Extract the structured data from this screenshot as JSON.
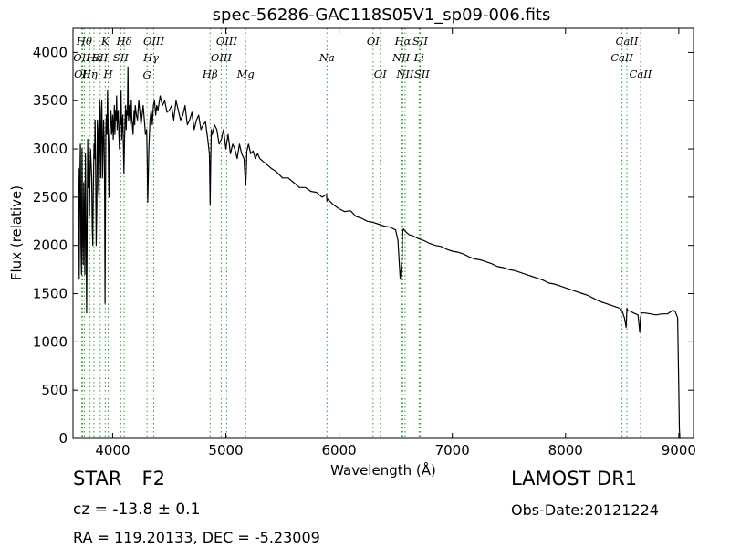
{
  "chart_data": {
    "type": "line",
    "title": "spec-56286-GAC118S05V1_sp09-006.fits",
    "xlabel": "Wavelength (Å)",
    "ylabel": "Flux (relative)",
    "xlim": [
      3650,
      9130
    ],
    "ylim": [
      0,
      4250
    ],
    "xticks": [
      4000,
      5000,
      6000,
      7000,
      8000,
      9000
    ],
    "yticks": [
      0,
      500,
      1000,
      1500,
      2000,
      2500,
      3000,
      3500,
      4000
    ],
    "grid": false,
    "line_color": "#000000",
    "marker_color": "#2ca02c",
    "series": [
      {
        "x": [
          3700,
          3705,
          3710,
          3715,
          3720,
          3725,
          3730,
          3735,
          3740,
          3745,
          3750,
          3755,
          3760,
          3765,
          3770,
          3775,
          3780,
          3785,
          3790,
          3795,
          3800,
          3805,
          3810,
          3815,
          3820,
          3825,
          3830,
          3835,
          3840,
          3845,
          3850,
          3855,
          3860,
          3865,
          3870,
          3875,
          3880,
          3885,
          3890,
          3895,
          3900,
          3905,
          3910,
          3915,
          3920,
          3925,
          3930,
          3933,
          3936,
          3940,
          3945,
          3950,
          3955,
          3960,
          3965,
          3968,
          3972,
          3978,
          3985,
          3990,
          3995,
          4000,
          4005,
          4010,
          4015,
          4020,
          4025,
          4030,
          4035,
          4040,
          4045,
          4050,
          4055,
          4060,
          4065,
          4070,
          4075,
          4080,
          4085,
          4090,
          4095,
          4100,
          4105,
          4110,
          4115,
          4120,
          4125,
          4130,
          4135,
          4140,
          4145,
          4150,
          4155,
          4160,
          4165,
          4170,
          4175,
          4180,
          4185,
          4190,
          4195,
          4200,
          4210,
          4220,
          4230,
          4240,
          4250,
          4260,
          4270,
          4280,
          4290,
          4300,
          4305,
          4310,
          4315,
          4320,
          4330,
          4340,
          4345,
          4350,
          4360,
          4370,
          4380,
          4390,
          4400,
          4420,
          4440,
          4460,
          4480,
          4500,
          4520,
          4540,
          4560,
          4580,
          4600,
          4620,
          4640,
          4660,
          4680,
          4700,
          4720,
          4740,
          4760,
          4780,
          4800,
          4820,
          4840,
          4850,
          4855,
          4861,
          4866,
          4872,
          4880,
          4900,
          4920,
          4940,
          4960,
          4980,
          5000,
          5020,
          5040,
          5060,
          5080,
          5100,
          5120,
          5140,
          5160,
          5170,
          5175,
          5180,
          5185,
          5190,
          5200,
          5220,
          5240,
          5260,
          5280,
          5300,
          5350,
          5400,
          5450,
          5500,
          5550,
          5600,
          5650,
          5700,
          5750,
          5800,
          5850,
          5889,
          5893,
          5900,
          5950,
          6000,
          6050,
          6100,
          6150,
          6200,
          6250,
          6300,
          6350,
          6400,
          6450,
          6500,
          6520,
          6540,
          6555,
          6560,
          6563,
          6567,
          6575,
          6590,
          6620,
          6650,
          6700,
          6750,
          6800,
          6850,
          6900,
          6950,
          7000,
          7050,
          7100,
          7150,
          7200,
          7250,
          7300,
          7350,
          7400,
          7450,
          7500,
          7550,
          7600,
          7650,
          7700,
          7750,
          7800,
          7850,
          7900,
          7950,
          8000,
          8050,
          8100,
          8150,
          8200,
          8250,
          8300,
          8350,
          8400,
          8450,
          8480,
          8500,
          8520,
          8535,
          8542,
          8550,
          8570,
          8600,
          8640,
          8655,
          8662,
          8670,
          8700,
          8750,
          8800,
          8850,
          8900,
          8950,
          8970,
          8980,
          8990,
          9000,
          9005,
          9010
        ],
        "y": [
          2800,
          1650,
          2600,
          3050,
          2000,
          1700,
          3000,
          2100,
          1800,
          2650,
          2300,
          1700,
          2950,
          2200,
          1300,
          2200,
          3100,
          2600,
          2900,
          2300,
          2700,
          3000,
          2850,
          2700,
          2200,
          2000,
          2600,
          3050,
          2900,
          3300,
          2800,
          2000,
          2400,
          3300,
          3200,
          2600,
          2500,
          3500,
          3200,
          2700,
          3400,
          3500,
          2700,
          3000,
          3300,
          3100,
          2500,
          1400,
          2300,
          3200,
          3350,
          3150,
          3600,
          3200,
          2700,
          2500,
          3100,
          3250,
          3400,
          3150,
          3200,
          3350,
          3100,
          3250,
          3450,
          3150,
          3400,
          3300,
          3550,
          3200,
          3350,
          3400,
          3150,
          3000,
          3300,
          3250,
          3600,
          3100,
          3300,
          3350,
          3050,
          2750,
          3100,
          3300,
          3450,
          3200,
          3400,
          3350,
          3850,
          3300,
          3450,
          3400,
          3250,
          3350,
          3500,
          3300,
          3250,
          3150,
          3300,
          3400,
          3250,
          3450,
          3350,
          3300,
          3500,
          3400,
          3250,
          3350,
          3450,
          3300,
          3150,
          3200,
          2900,
          2450,
          2700,
          3000,
          3300,
          3400,
          3350,
          3250,
          3450,
          3500,
          3350,
          3450,
          3400,
          3550,
          3450,
          3500,
          3380,
          3400,
          3450,
          3300,
          3500,
          3400,
          3300,
          3350,
          3450,
          3250,
          3300,
          3380,
          3200,
          3300,
          3350,
          3200,
          3250,
          3280,
          3100,
          3000,
          2950,
          2420,
          2850,
          3200,
          3150,
          3250,
          3200,
          3050,
          3100,
          3200,
          3000,
          3150,
          2950,
          3050,
          3000,
          2900,
          3050,
          2950,
          2900,
          2700,
          2620,
          2750,
          2980,
          3000,
          3050,
          2950,
          2980,
          2900,
          2950,
          2900,
          2850,
          2800,
          2760,
          2700,
          2700,
          2650,
          2600,
          2600,
          2560,
          2550,
          2500,
          2530,
          2460,
          2480,
          2420,
          2380,
          2350,
          2360,
          2300,
          2280,
          2250,
          2240,
          2220,
          2200,
          2190,
          2160,
          2050,
          1650,
          1850,
          2100,
          2150,
          2170,
          2160,
          2140,
          2110,
          2100,
          2070,
          2050,
          2020,
          2000,
          1990,
          1960,
          1940,
          1930,
          1910,
          1880,
          1860,
          1850,
          1830,
          1810,
          1780,
          1770,
          1750,
          1740,
          1720,
          1700,
          1680,
          1660,
          1640,
          1610,
          1600,
          1580,
          1560,
          1540,
          1520,
          1500,
          1480,
          1450,
          1420,
          1400,
          1380,
          1360,
          1350,
          1320,
          1250,
          1150,
          1350,
          1320,
          1320,
          1300,
          1280,
          1100,
          1250,
          1300,
          1300,
          1290,
          1280,
          1290,
          1290,
          1330,
          1310,
          1280,
          1250,
          500,
          100,
          0
        ]
      }
    ],
    "lines": [
      {
        "x": 3727,
        "label": "OII",
        "row": 2
      },
      {
        "x": 3734,
        "label": "OII",
        "row": 3
      },
      {
        "x": 3750,
        "label": "Hθ",
        "row": 1
      },
      {
        "x": 3798,
        "label": "Hη",
        "row": 3
      },
      {
        "x": 3835,
        "label": "Hε",
        "row": 2
      },
      {
        "x": 3890,
        "label": "SII",
        "row": 2
      },
      {
        "x": 3934,
        "label": "K",
        "row": 1
      },
      {
        "x": 3960,
        "label": "H",
        "row": 3
      },
      {
        "x": 4072,
        "label": "SII",
        "row": 2
      },
      {
        "x": 4102,
        "label": "Hδ",
        "row": 1
      },
      {
        "x": 4304,
        "label": "G",
        "row": 4
      },
      {
        "x": 4340,
        "label": "Hγ",
        "row": 2
      },
      {
        "x": 4363,
        "label": "OIII",
        "row": 1
      },
      {
        "x": 4861,
        "label": "Hβ",
        "row": 3
      },
      {
        "x": 4959,
        "label": "OIII",
        "row": 2
      },
      {
        "x": 5007,
        "label": "OIII",
        "row": 1
      },
      {
        "x": 5175,
        "label": "Mg",
        "row": 3
      },
      {
        "x": 5893,
        "label": "Na",
        "row": 2
      },
      {
        "x": 6300,
        "label": "OI",
        "row": 1
      },
      {
        "x": 6364,
        "label": "OI",
        "row": 3
      },
      {
        "x": 6548,
        "label": "NII",
        "row": 2
      },
      {
        "x": 6563,
        "label": "Hα",
        "row": 1
      },
      {
        "x": 6583,
        "label": "NII",
        "row": 3
      },
      {
        "x": 6707,
        "label": "Li",
        "row": 2
      },
      {
        "x": 6716,
        "label": "SII",
        "row": 1
      },
      {
        "x": 6731,
        "label": "SII",
        "row": 3
      },
      {
        "x": 8498,
        "label": "CaII",
        "row": 2
      },
      {
        "x": 8542,
        "label": "CaII",
        "row": 1
      },
      {
        "x": 8662,
        "label": "CaII",
        "row": 3
      }
    ]
  },
  "info": {
    "class": "STAR",
    "subclass": "F2",
    "cz": "cz = -13.8  ± 0.1",
    "radec": "RA = 119.20133, DEC = -5.23009",
    "survey": "LAMOST DR1",
    "obs_date": "Obs-Date:20121224"
  }
}
